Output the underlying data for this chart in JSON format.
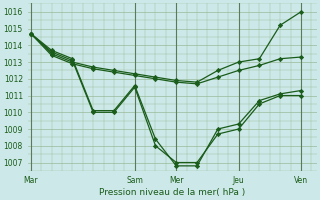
{
  "background_color": "#cce8e8",
  "grid_color": "#99bb99",
  "line_color": "#1a5c1a",
  "marker_color": "#1a5c1a",
  "xlabel": "Pression niveau de la mer( hPa )",
  "ylim": [
    1006.5,
    1016.5
  ],
  "yticks": [
    1007,
    1008,
    1009,
    1010,
    1011,
    1012,
    1013,
    1014,
    1015,
    1016
  ],
  "day_labels": [
    "Mar",
    "Sam",
    "Mer",
    "Jeu",
    "Ven"
  ],
  "day_positions": [
    0,
    10,
    14,
    20,
    26
  ],
  "xlim": [
    -0.3,
    27.5
  ],
  "series1_x": [
    0,
    2,
    4,
    6,
    8,
    10,
    12,
    14,
    16,
    18,
    20,
    22,
    24,
    26
  ],
  "series1_y": [
    1014.7,
    1013.7,
    1013.2,
    1010.1,
    1010.1,
    1011.6,
    1008.4,
    1006.8,
    1006.8,
    1009.0,
    1009.3,
    1010.7,
    1011.1,
    1011.3
  ],
  "series2_x": [
    0,
    2,
    4,
    6,
    8,
    10,
    12,
    14,
    16,
    18,
    20,
    22,
    24,
    26
  ],
  "series2_y": [
    1014.7,
    1013.6,
    1013.1,
    1010.0,
    1010.0,
    1011.5,
    1008.0,
    1007.0,
    1007.0,
    1008.7,
    1009.0,
    1010.5,
    1011.0,
    1011.0
  ],
  "series3_x": [
    0,
    2,
    4,
    6,
    8,
    10,
    12,
    14,
    16,
    18,
    20,
    22,
    24,
    26
  ],
  "series3_y": [
    1014.7,
    1013.5,
    1013.0,
    1012.7,
    1012.5,
    1012.3,
    1012.1,
    1011.9,
    1011.8,
    1012.5,
    1013.0,
    1013.2,
    1015.2,
    1016.0
  ],
  "series4_x": [
    0,
    2,
    4,
    6,
    8,
    10,
    12,
    14,
    16,
    18,
    20,
    22,
    24,
    26
  ],
  "series4_y": [
    1014.7,
    1013.4,
    1012.9,
    1012.6,
    1012.4,
    1012.2,
    1012.0,
    1011.8,
    1011.7,
    1012.1,
    1012.5,
    1012.8,
    1013.2,
    1013.3
  ]
}
